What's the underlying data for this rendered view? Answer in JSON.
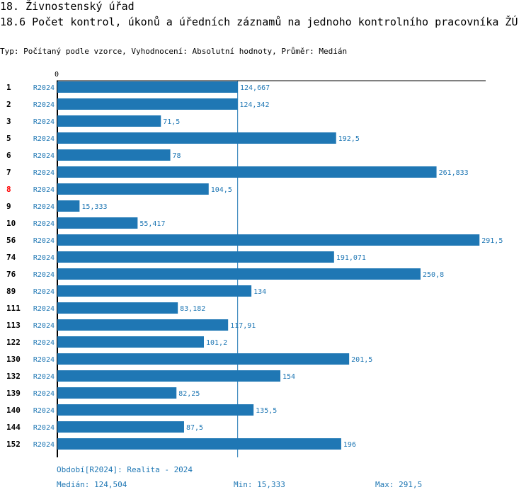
{
  "header": {
    "title": "18. Živnostenský úřad",
    "subtitle": "18.6 Počet kontrol, úkonů a úředních záznamů na jednoho kontrolního pracovníka ŽÚ",
    "info": "Typ: Počítaný podle vzorce, Vyhodnocení: Absolutní hodnoty, Průměr: Medián"
  },
  "colors": {
    "bar": "#1f77b4",
    "highlight": "#ff0000",
    "text": "#000000"
  },
  "chart_data": {
    "type": "bar",
    "orientation": "horizontal",
    "axis_tick": "0",
    "xlim": [
      0,
      291.5
    ],
    "period": "R2024",
    "highlight_category": "8",
    "categories": [
      "1",
      "2",
      "3",
      "5",
      "6",
      "7",
      "8",
      "9",
      "10",
      "56",
      "74",
      "76",
      "89",
      "111",
      "113",
      "122",
      "130",
      "132",
      "139",
      "140",
      "144",
      "152"
    ],
    "values": [
      124.667,
      124.342,
      71.5,
      192.5,
      78,
      261.833,
      104.5,
      15.333,
      55.417,
      291.5,
      191.071,
      250.8,
      134,
      83.182,
      117.91,
      101.2,
      201.5,
      154,
      82.25,
      135.5,
      87.5,
      196
    ],
    "labels": [
      "124,667",
      "124,342",
      "71,5",
      "192,5",
      "78",
      "261,833",
      "104,5",
      "15,333",
      "55,417",
      "291,5",
      "191,071",
      "250,8",
      "134",
      "83,182",
      "117,91",
      "101,2",
      "201,5",
      "154",
      "82,25",
      "135,5",
      "87,5",
      "196"
    ],
    "median": 124.504
  },
  "footer": {
    "legend": "Období[R2024]: Realita - 2024",
    "median": "Medián: 124,504",
    "min": "Min: 15,333",
    "max": "Max: 291,5"
  }
}
